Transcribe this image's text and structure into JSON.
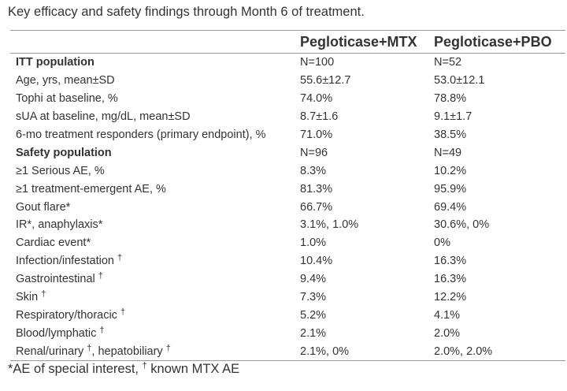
{
  "caption": "Key efficacy and safety findings through Month 6 of treatment.",
  "table": {
    "headers": [
      "",
      "Pegloticase+MTX",
      "Pegloticase+PBO"
    ],
    "rows": [
      {
        "label": "ITT population",
        "mtx": "N=100",
        "pbo": "N=52",
        "section": true
      },
      {
        "label": "Age, yrs, mean±SD",
        "mtx": "55.6±12.7",
        "pbo": "53.0±12.1"
      },
      {
        "label": "Tophi at baseline, %",
        "mtx": "74.0%",
        "pbo": "78.8%"
      },
      {
        "label": "sUA at baseline, mg/dL, mean±SD",
        "mtx": "8.7±1.6",
        "pbo": "9.1±1.7"
      },
      {
        "label": "6-mo treatment responders (primary endpoint), %",
        "mtx": "71.0%",
        "pbo": "38.5%"
      },
      {
        "label": "Safety population",
        "mtx": "N=96",
        "pbo": "N=49",
        "section": true
      },
      {
        "label": "≥1 Serious AE, %",
        "mtx": "8.3%",
        "pbo": "10.2%"
      },
      {
        "label": "≥1 treatment-emergent AE, %",
        "mtx": "81.3%",
        "pbo": "95.9%"
      },
      {
        "label": "Gout flare*",
        "mtx": "66.7%",
        "pbo": "69.4%"
      },
      {
        "label": "IR*, anaphylaxis*",
        "mtx": "3.1%, 1.0%",
        "pbo": "30.6%, 0%"
      },
      {
        "label": "Cardiac event*",
        "mtx": "1.0%",
        "pbo": "0%"
      },
      {
        "label": "Infection/infestation",
        "mtx": "10.4%",
        "pbo": "16.3%",
        "dagger": true
      },
      {
        "label": "Gastrointestinal",
        "mtx": "9.4%",
        "pbo": "16.3%",
        "dagger": true
      },
      {
        "label": "Skin",
        "mtx": "7.3%",
        "pbo": "12.2%",
        "dagger": true
      },
      {
        "label": "Respiratory/thoracic",
        "mtx": "5.2%",
        "pbo": "4.1%",
        "dagger": true
      },
      {
        "label": "Blood/lymphatic",
        "mtx": "2.1%",
        "pbo": "2.0%",
        "dagger": true
      },
      {
        "label_parts": [
          "Renal/urinary",
          ", hepatobiliary"
        ],
        "mtx": "2.1%, 0%",
        "pbo": "2.0%, 2.0%",
        "dagger_each": true
      }
    ]
  },
  "footnote": {
    "part1": "*AE of special interest, ",
    "dagger": "†",
    "part2": " known MTX AE"
  }
}
